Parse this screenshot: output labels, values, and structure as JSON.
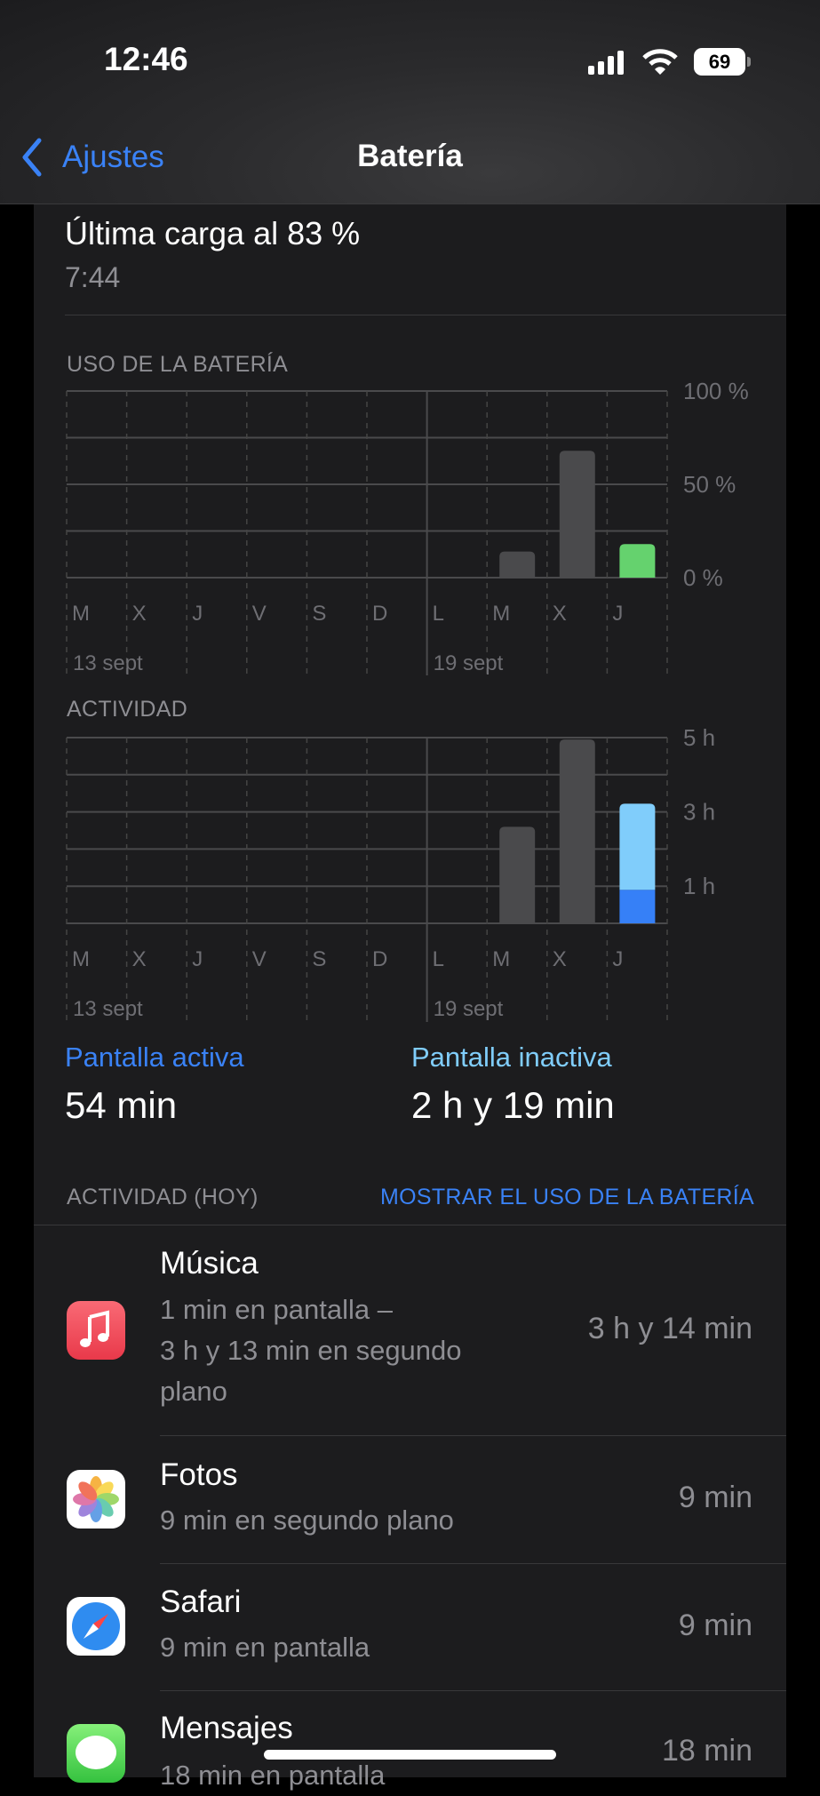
{
  "status": {
    "time": "12:46",
    "battery": "69",
    "icons": [
      "cellular-signal-icon",
      "wifi-icon",
      "battery-icon"
    ]
  },
  "nav": {
    "back_label": "Ajustes",
    "title": "Batería"
  },
  "last_charge": {
    "title": "Última carga al 83 %",
    "time": "7:44"
  },
  "chart_data": [
    {
      "type": "bar",
      "title": "USO DE LA BATERÍA",
      "categories": [
        "M",
        "X",
        "J",
        "V",
        "S",
        "D",
        "L",
        "M",
        "X",
        "J"
      ],
      "date_labels": [
        "13 sept",
        "19 sept"
      ],
      "values": [
        0,
        0,
        0,
        0,
        0,
        0,
        0,
        14,
        68,
        18
      ],
      "yticks": [
        "100 %",
        "50 %",
        "0 %"
      ],
      "ylim": [
        0,
        100
      ],
      "colors": {
        "past": "#4a4a4c",
        "today": "#65d26e"
      }
    },
    {
      "type": "bar",
      "title": "ACTIVIDAD",
      "categories": [
        "M",
        "X",
        "J",
        "V",
        "S",
        "D",
        "L",
        "M",
        "X",
        "J"
      ],
      "date_labels": [
        "13 sept",
        "19 sept"
      ],
      "stacked": true,
      "series": [
        {
          "name": "Pantalla activa",
          "values": [
            0,
            0,
            0,
            0,
            0,
            0,
            0,
            2.6,
            4.95,
            0.9
          ]
        },
        {
          "name": "Pantalla inactiva",
          "values": [
            0,
            0,
            0,
            0,
            0,
            0,
            0,
            0,
            0,
            2.32
          ]
        }
      ],
      "yticks": [
        "5 h",
        "3 h",
        "1 h"
      ],
      "ylim": [
        0,
        5
      ],
      "colors": {
        "past": "#4a4a4c",
        "active": "#3680f7",
        "inactive": "#80cdfb"
      }
    }
  ],
  "summary": {
    "active_label": "Pantalla activa",
    "active_value": "54 min",
    "inactive_label": "Pantalla inactiva",
    "inactive_value": "2 h y 19 min",
    "active_color": "#3a82f6",
    "inactive_color": "#80cdfb"
  },
  "activity": {
    "header": "ACTIVIDAD (HOY)",
    "toggle": "MOSTRAR EL USO DE LA BATERÍA",
    "apps": [
      {
        "name": "Música",
        "detail": [
          "1 min en pantalla –",
          "3 h y 13 min en segundo",
          "plano"
        ],
        "value": "3 h y 14 min",
        "icon": "music-icon"
      },
      {
        "name": "Fotos",
        "detail": [
          "9 min en segundo plano"
        ],
        "value": "9 min",
        "icon": "photos-icon"
      },
      {
        "name": "Safari",
        "detail": [
          "9 min en pantalla"
        ],
        "value": "9 min",
        "icon": "safari-icon"
      },
      {
        "name": "Mensajes",
        "detail": [
          "18 min en pantalla"
        ],
        "value": "18 min",
        "icon": "messages-icon"
      }
    ]
  }
}
